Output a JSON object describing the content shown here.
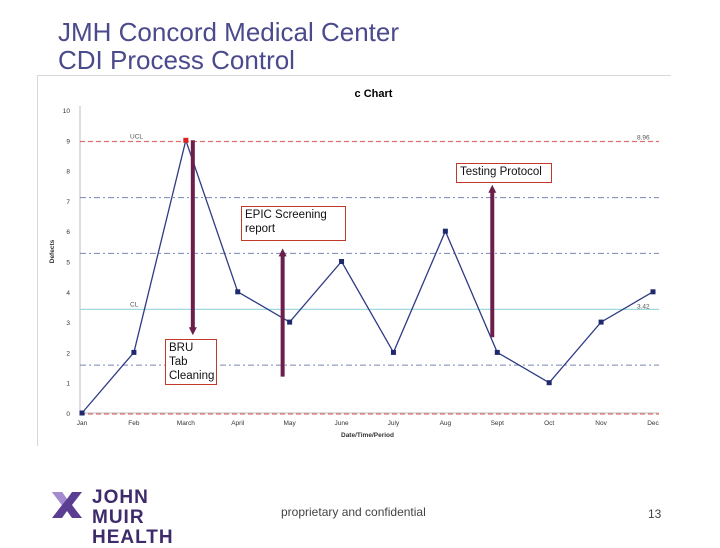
{
  "slide": {
    "title_line1": "JMH Concord Medical Center",
    "title_line2": "CDI Process Control",
    "footer_text": "proprietary and confidential",
    "page_number": "13",
    "logo_line1": "JOHN MUIR",
    "logo_line2": "HEALTH"
  },
  "callouts": {
    "testing_protocol": "Testing Protocol",
    "epic_line1": "EPIC Screening",
    "epic_line2": "report",
    "bru_line1": "BRU",
    "bru_line2": "Tab",
    "bru_line3": "Cleaning"
  },
  "chart_data": {
    "type": "line",
    "title": "c Chart",
    "xlabel": "Date/Time/Period",
    "ylabel": "Defects",
    "categories": [
      "Jan",
      "Feb",
      "March",
      "April",
      "May",
      "June",
      "July",
      "Aug",
      "Sept",
      "Oct",
      "Nov",
      "Dec"
    ],
    "values": [
      0,
      2,
      9,
      4,
      3,
      5,
      2,
      6,
      2,
      1,
      3,
      4
    ],
    "ylim": [
      0,
      10
    ],
    "yticks": [
      "0",
      "1",
      "2",
      "3",
      "4",
      "5",
      "6",
      "7",
      "8",
      "9",
      "10"
    ],
    "ucl": {
      "label": "UCL",
      "value": 8.96,
      "value_label": "8.96"
    },
    "cl": {
      "label": "CL",
      "value": 3.42,
      "value_label": "3.42"
    },
    "lcl": 0,
    "sigma_lines": [
      7.11,
      5.27,
      1.58
    ],
    "out_of_control_index": 2,
    "colors": {
      "series": "#2f3b84",
      "marker": "#1f2a6e",
      "out_of_control": "#e02020",
      "ucl_line": "#e07070",
      "cl_line": "#9ed9e0",
      "sigma_line": "#7788b0",
      "arrow": "#6b1f4a"
    },
    "annotations": [
      {
        "name": "bru-tab-cleaning-arrow",
        "category": "March",
        "from": 9,
        "to": 2.7,
        "direction": "down"
      },
      {
        "name": "epic-screening-arrow",
        "category": "May",
        "from": 1.2,
        "to": 5.3,
        "direction": "up"
      },
      {
        "name": "testing-protocol-arrow",
        "category": "Sept",
        "from": 2.5,
        "to": 7.4,
        "direction": "up"
      }
    ]
  }
}
